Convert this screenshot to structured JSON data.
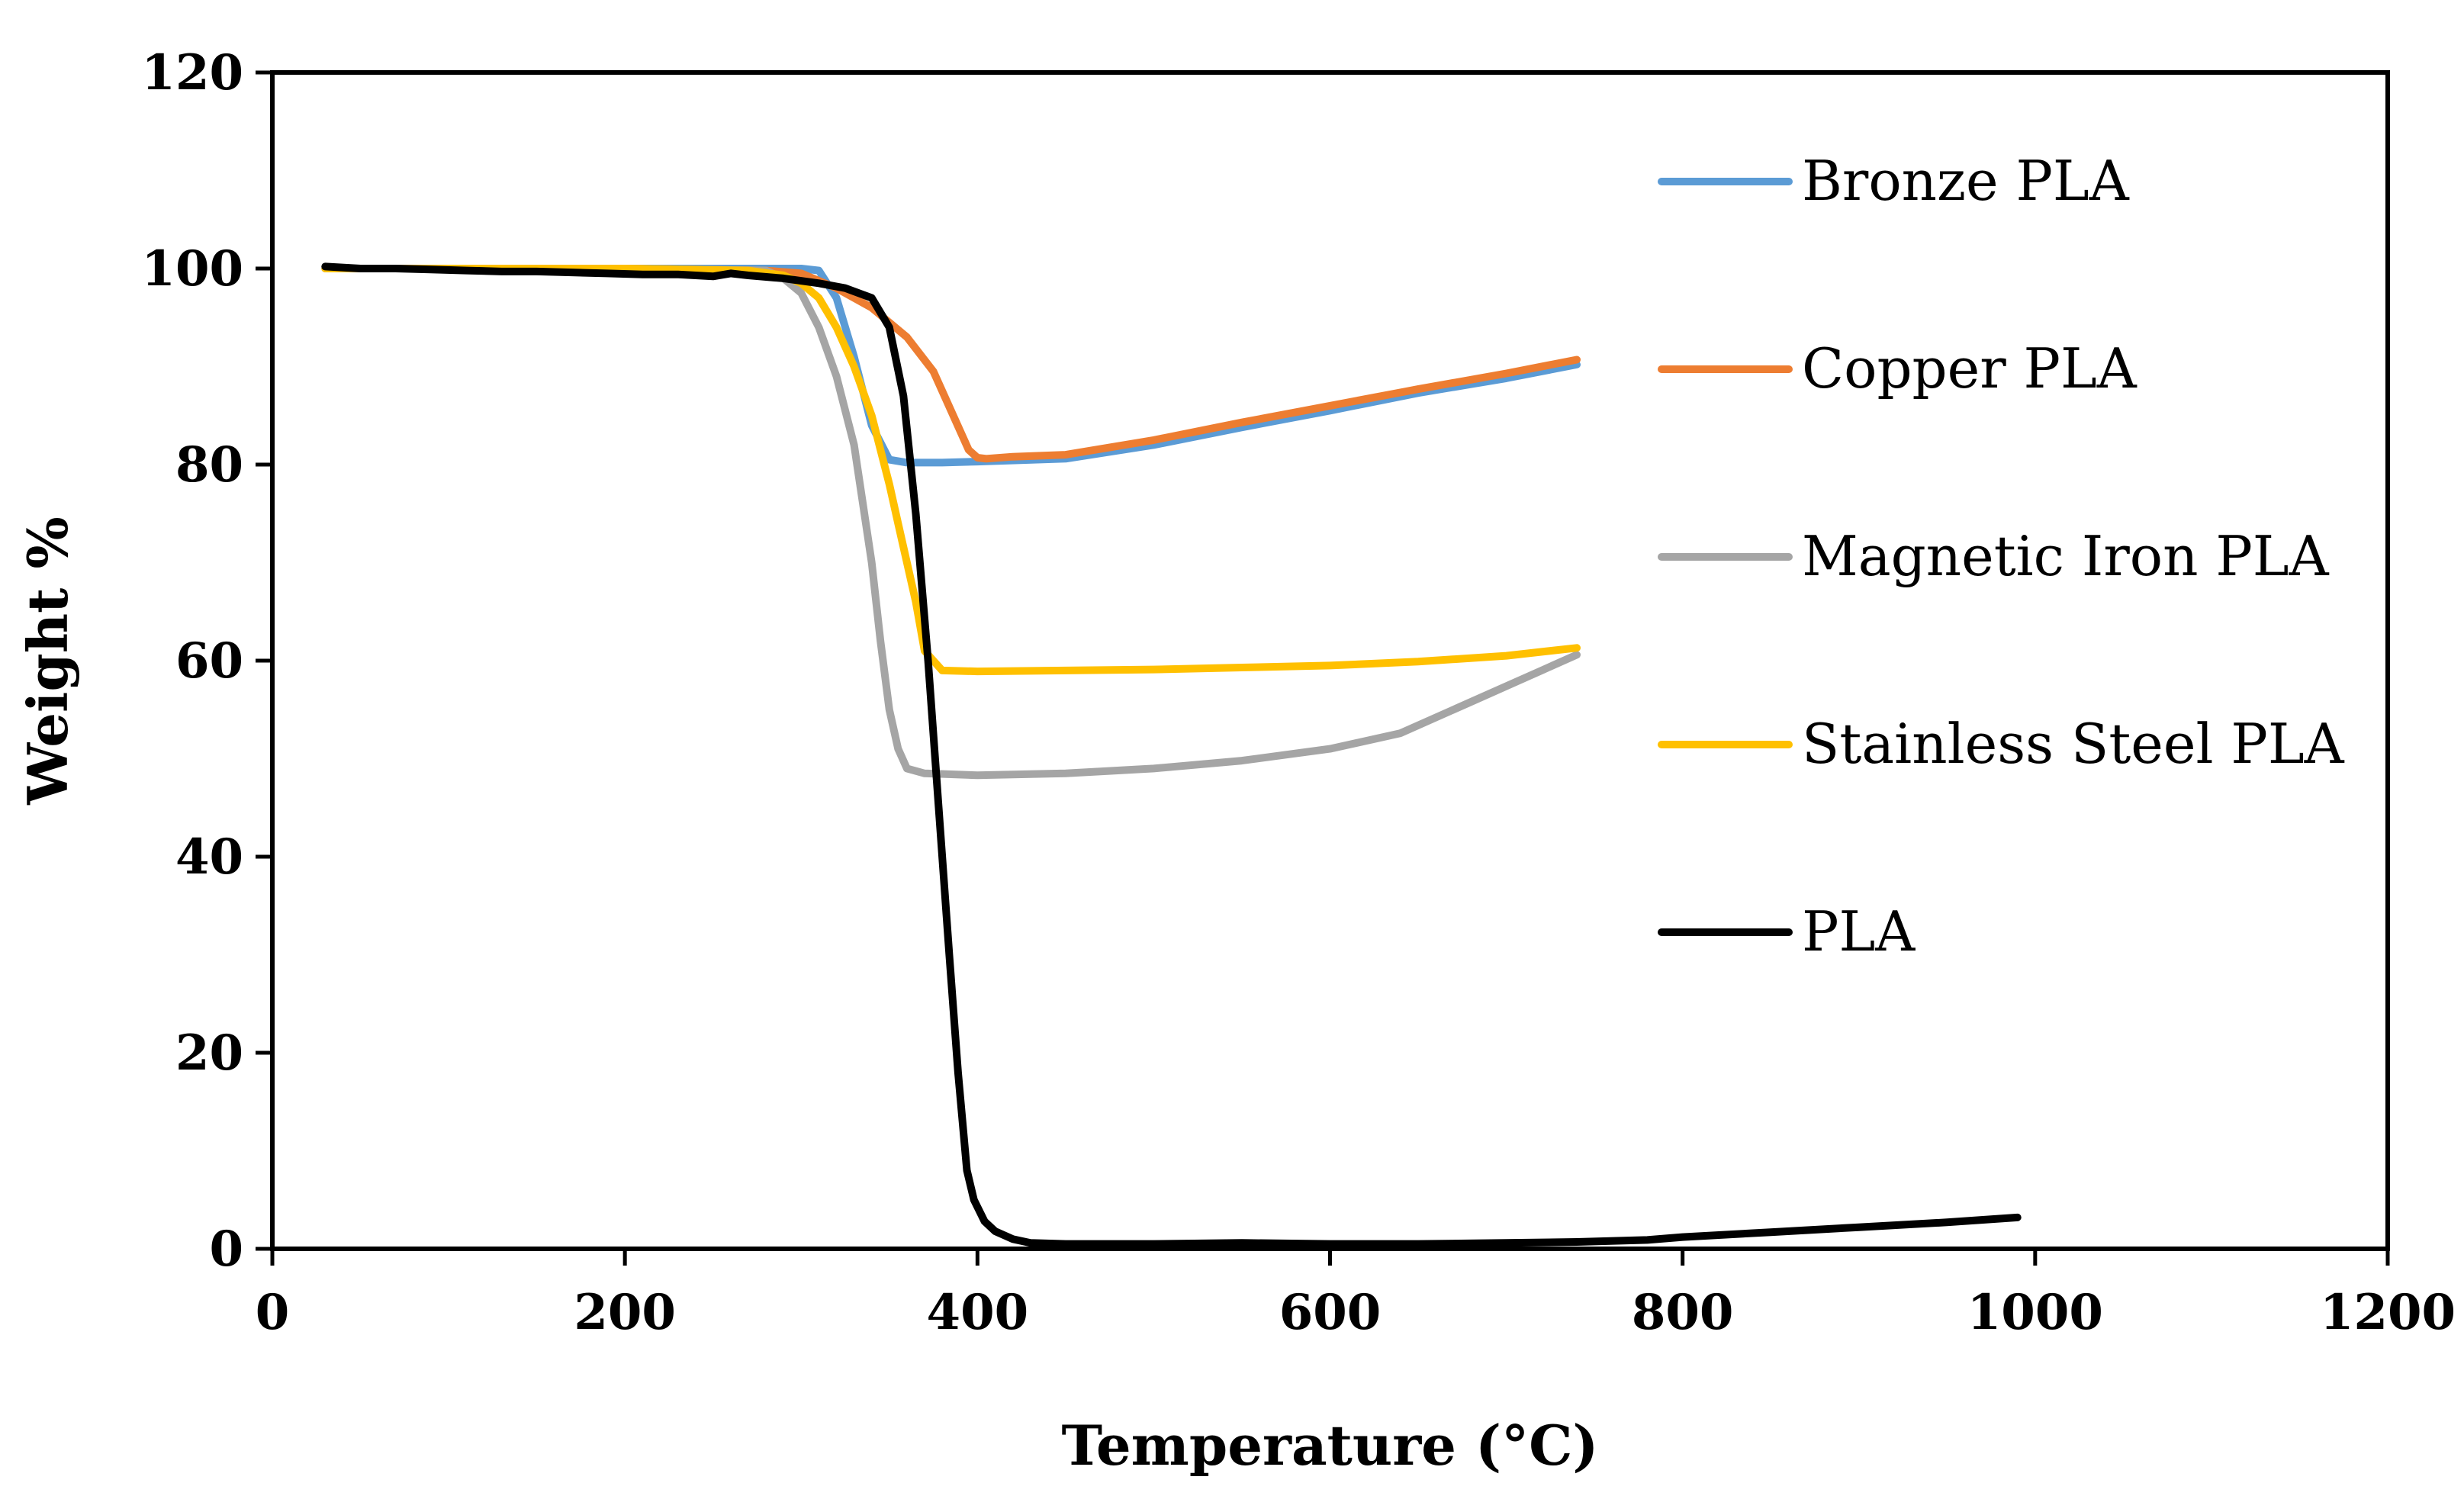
{
  "chart_data": {
    "type": "line",
    "title": "",
    "xlabel": "Temperature (°C)",
    "ylabel": "Weight %",
    "xlim": [
      0,
      1200
    ],
    "ylim": [
      0,
      120
    ],
    "xticks": [
      0,
      200,
      400,
      600,
      800,
      1000,
      1200
    ],
    "yticks": [
      0,
      20,
      40,
      60,
      80,
      100,
      120
    ],
    "x_tick_labels": [
      "0",
      "200",
      "400",
      "600",
      "800",
      "1000",
      "1200"
    ],
    "y_tick_labels": [
      "0",
      "20",
      "40",
      "60",
      "80",
      "100",
      "120"
    ],
    "grid": false,
    "legend_position": "right",
    "series": [
      {
        "name": "Bronze PLA",
        "color": "#5B9BD5",
        "x": [
          30,
          100,
          200,
          280,
          300,
          310,
          320,
          330,
          340,
          350,
          360,
          380,
          400,
          450,
          500,
          550,
          600,
          650,
          700,
          740
        ],
        "y": [
          100,
          100,
          100,
          100,
          100,
          99.8,
          97,
          91,
          84,
          80.5,
          80.2,
          80.2,
          80.3,
          80.6,
          82,
          83.8,
          85.5,
          87.3,
          88.8,
          90.2
        ]
      },
      {
        "name": "Copper PLA",
        "color": "#ED7D31",
        "x": [
          30,
          100,
          200,
          280,
          300,
          320,
          340,
          360,
          375,
          385,
          395,
          400,
          405,
          420,
          450,
          500,
          550,
          600,
          650,
          700,
          740
        ],
        "y": [
          100,
          100,
          100,
          99.8,
          99.5,
          98,
          96,
          93,
          89.5,
          85.5,
          81.5,
          80.7,
          80.6,
          80.8,
          81,
          82.5,
          84.3,
          86,
          87.7,
          89.3,
          90.7
        ]
      },
      {
        "name": "Magnetic Iron PLA",
        "color": "#A5A5A5",
        "x": [
          30,
          100,
          200,
          280,
          290,
          300,
          310,
          320,
          330,
          340,
          345,
          350,
          355,
          360,
          370,
          400,
          450,
          500,
          550,
          600,
          640,
          680,
          720,
          740
        ],
        "y": [
          100,
          100,
          100,
          99.8,
          99,
          97.5,
          94,
          89,
          82,
          70,
          62,
          55,
          51,
          49,
          48.5,
          48.3,
          48.5,
          49,
          49.8,
          51,
          52.6,
          55.8,
          59,
          60.6
        ]
      },
      {
        "name": "Stainless Steel PLA",
        "color": "#FFC000",
        "x": [
          30,
          100,
          200,
          270,
          290,
          300,
          310,
          320,
          330,
          340,
          350,
          355,
          360,
          365,
          370,
          380,
          400,
          450,
          500,
          550,
          600,
          650,
          700,
          740
        ],
        "y": [
          100,
          100,
          100,
          99.8,
          99.3,
          98.5,
          97,
          94,
          90,
          85,
          78,
          74,
          70,
          66,
          61,
          59,
          58.9,
          59,
          59.1,
          59.3,
          59.5,
          59.9,
          60.5,
          61.3
        ]
      },
      {
        "name": "PLA",
        "color": "#000000",
        "x": [
          30,
          50,
          70,
          90,
          110,
          130,
          150,
          170,
          190,
          210,
          230,
          250,
          260,
          270,
          290,
          310,
          325,
          340,
          350,
          358,
          365,
          372,
          378,
          384,
          389,
          394,
          398,
          404,
          410,
          420,
          430,
          450,
          500,
          550,
          600,
          650,
          700,
          740,
          780,
          800,
          850,
          900,
          950,
          990
        ],
        "y": [
          100.2,
          100,
          100,
          99.9,
          99.8,
          99.7,
          99.7,
          99.6,
          99.5,
          99.4,
          99.4,
          99.2,
          99.5,
          99.3,
          99,
          98.5,
          98,
          97,
          94,
          87,
          75,
          60,
          45,
          30,
          18,
          8,
          5,
          2.8,
          1.8,
          1,
          0.6,
          0.5,
          0.5,
          0.6,
          0.5,
          0.5,
          0.6,
          0.7,
          0.9,
          1.2,
          1.7,
          2.2,
          2.7,
          3.2
        ]
      }
    ]
  }
}
